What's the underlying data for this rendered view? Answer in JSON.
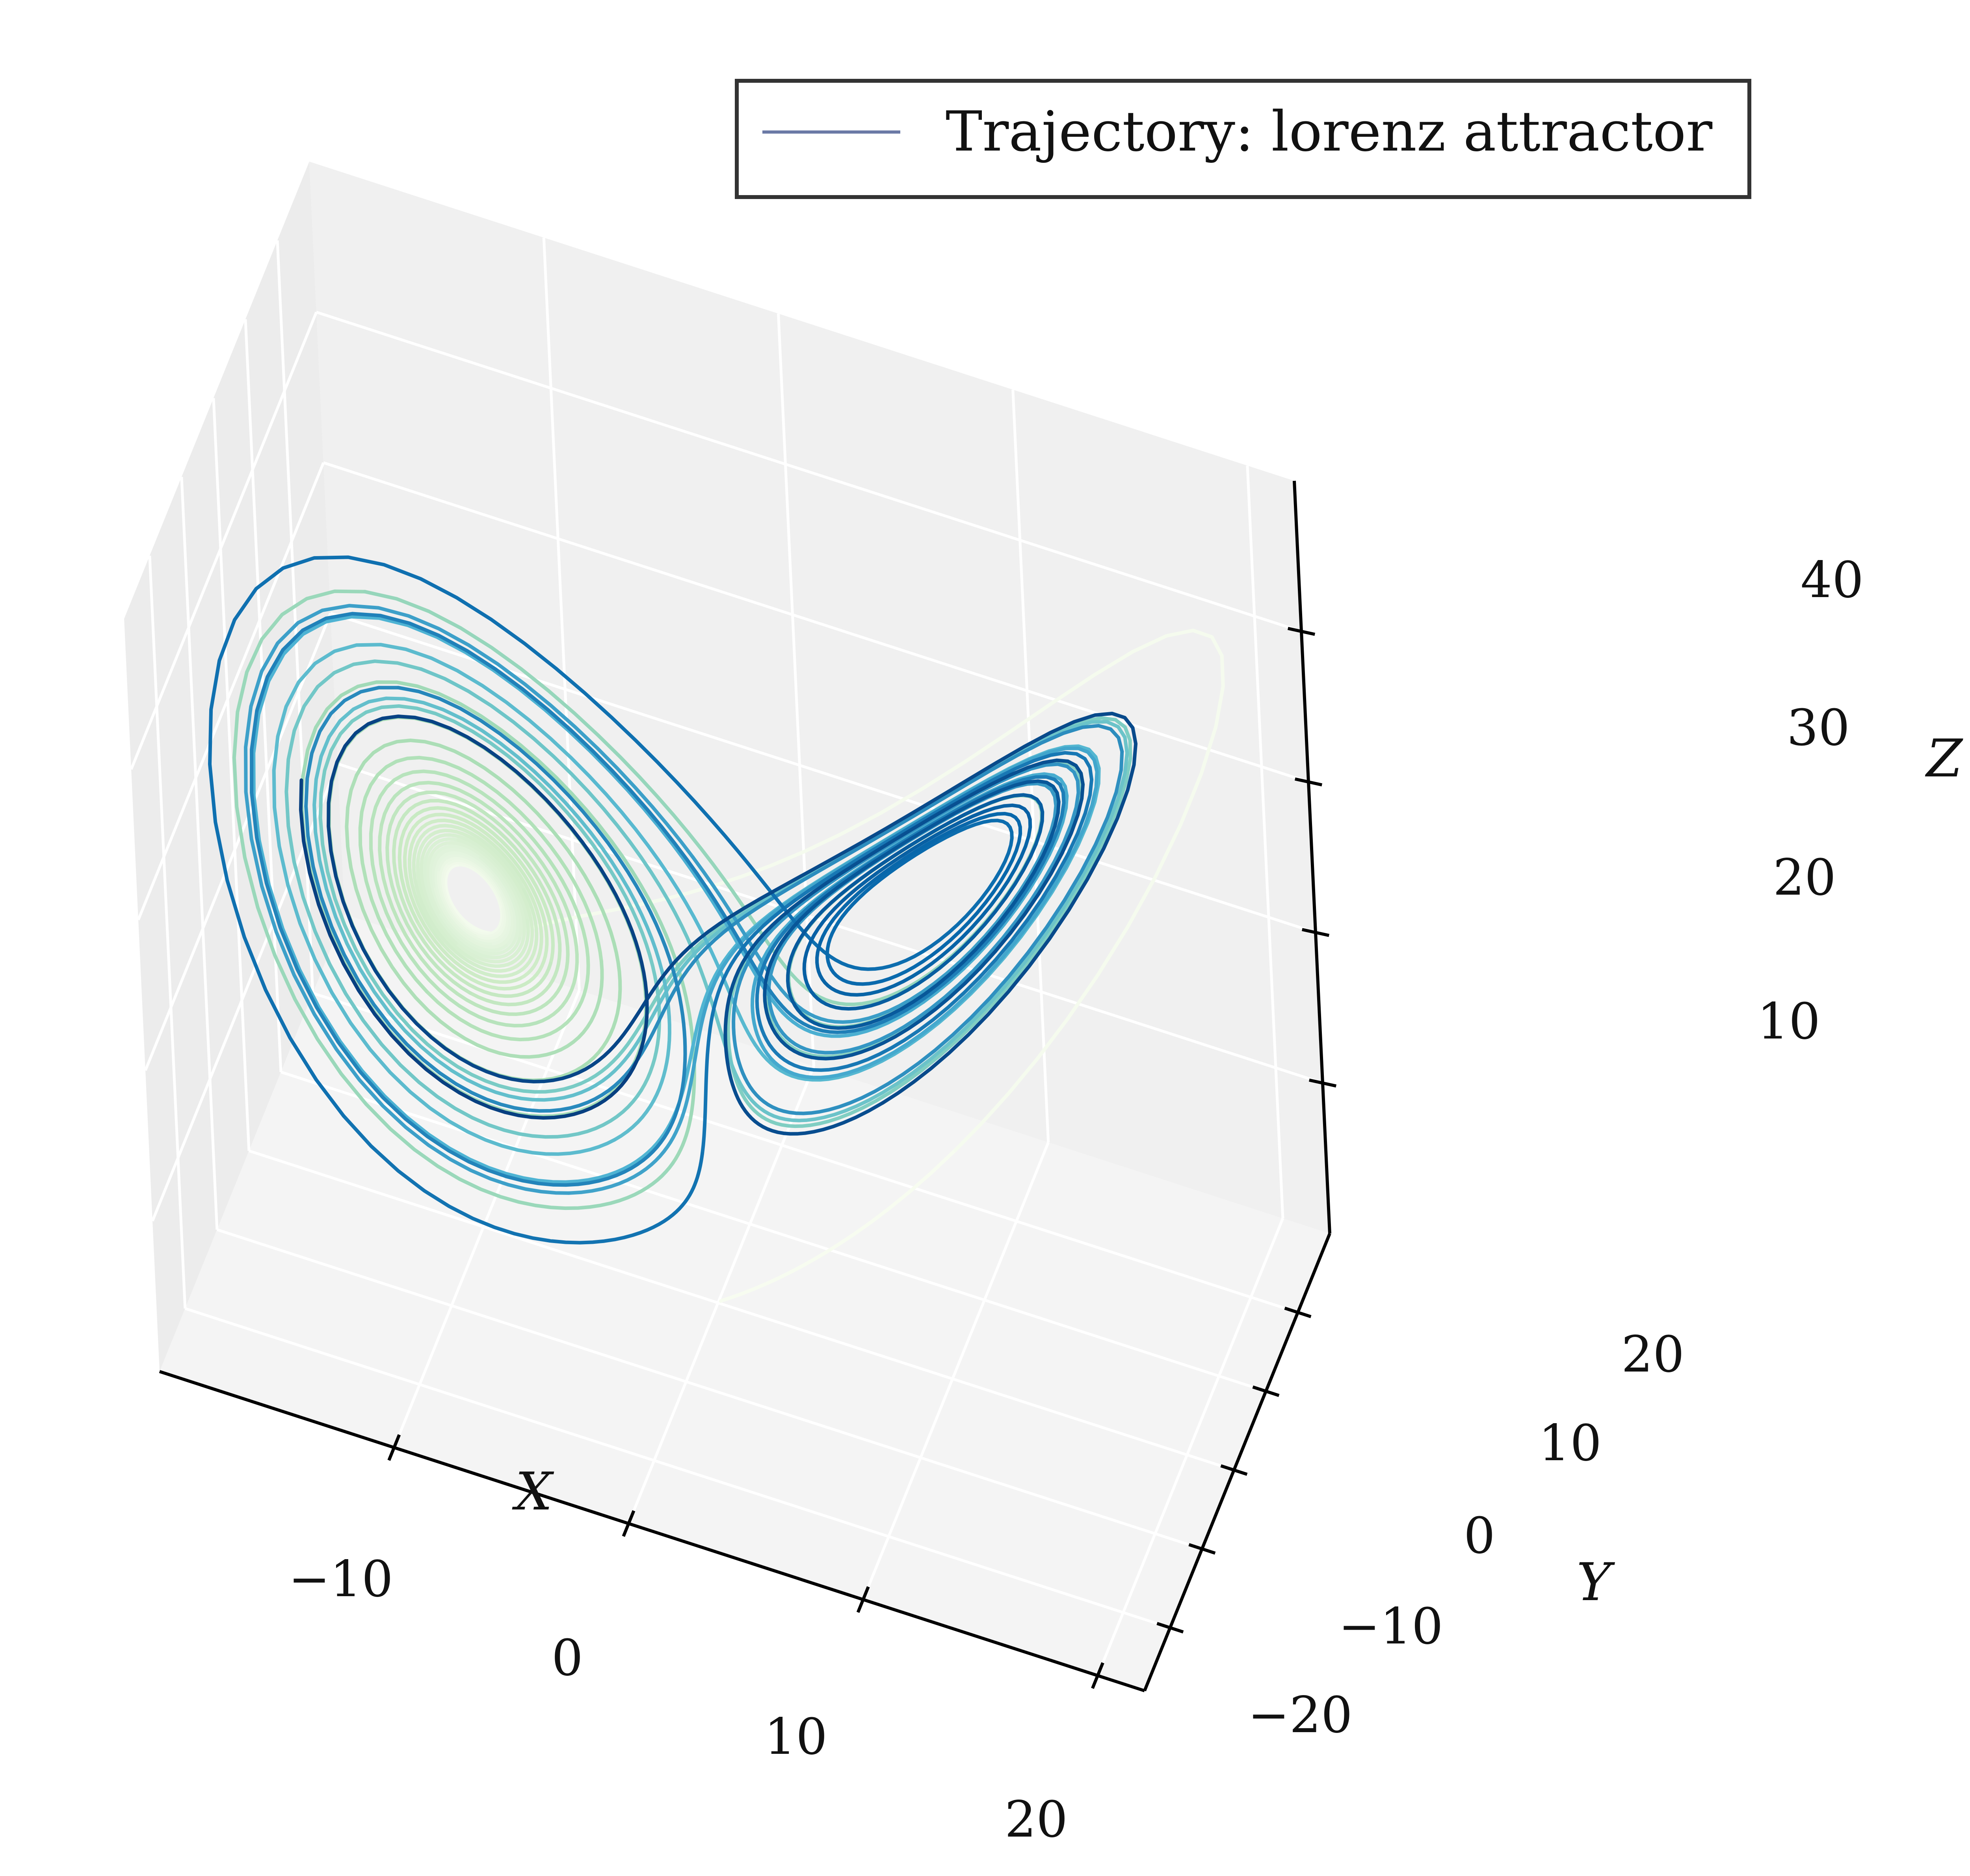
{
  "chart_data": {
    "type": "line",
    "projection": "3d",
    "title": "",
    "xlabel": "X",
    "ylabel": "Y",
    "zlabel": "Z",
    "x_ticks": [
      "−10",
      "0",
      "10",
      "20"
    ],
    "y_ticks": [
      "−20",
      "−10",
      "0",
      "10",
      "20"
    ],
    "z_ticks": [
      "10",
      "20",
      "30",
      "40"
    ],
    "xlim": [
      -20,
      22
    ],
    "ylim": [
      -28,
      30
    ],
    "zlim": [
      0,
      50
    ],
    "grid": true,
    "pane_color": "#f2f2f2",
    "colormap": "GnBu",
    "legend": {
      "location": "top-right",
      "entry": "Trajectory: lorenz attractor",
      "line_color": "#6b7aa6"
    },
    "series": [
      {
        "name": "Trajectory: lorenz attractor",
        "generator": "lorenz",
        "sigma": 10,
        "rho": 28,
        "beta": 2.6667,
        "initial_state": [
          0.1,
          0.1,
          0.1
        ]
      }
    ]
  }
}
